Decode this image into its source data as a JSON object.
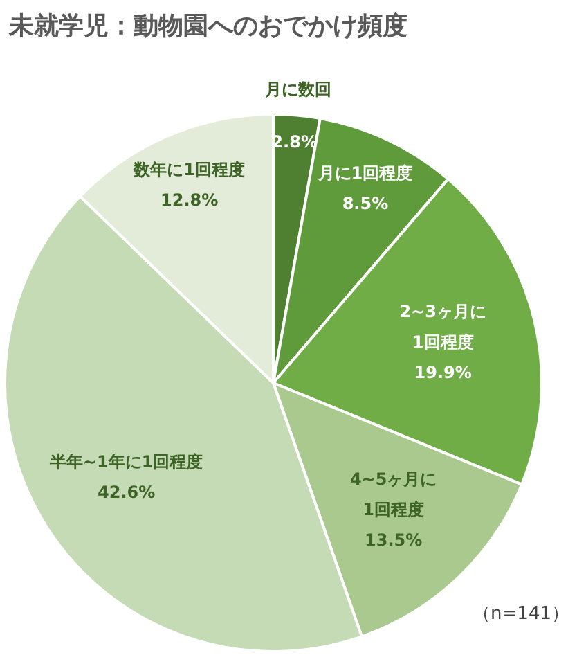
{
  "chart_data": {
    "type": "pie",
    "title": "未就学児：動物園へのおでかけ頻度",
    "categories": [
      "月に数回",
      "月に1回程度",
      "2~3ヶ月に1回程度",
      "4~5ヶ月に1回程度",
      "半年~1年に1回程度",
      "数年に1回程度"
    ],
    "values": [
      2.8,
      8.5,
      19.9,
      13.5,
      42.6,
      12.8
    ],
    "colors": [
      "#4f7f30",
      "#5f9a3b",
      "#70ad47",
      "#a9c98f",
      "#c5dbb5",
      "#e2ecd9"
    ],
    "value_labels": [
      "2.8%",
      "8.5%",
      "19.9%",
      "13.5%",
      "42.6%",
      "12.8%"
    ],
    "annotations": [
      "（n=141）"
    ]
  }
}
